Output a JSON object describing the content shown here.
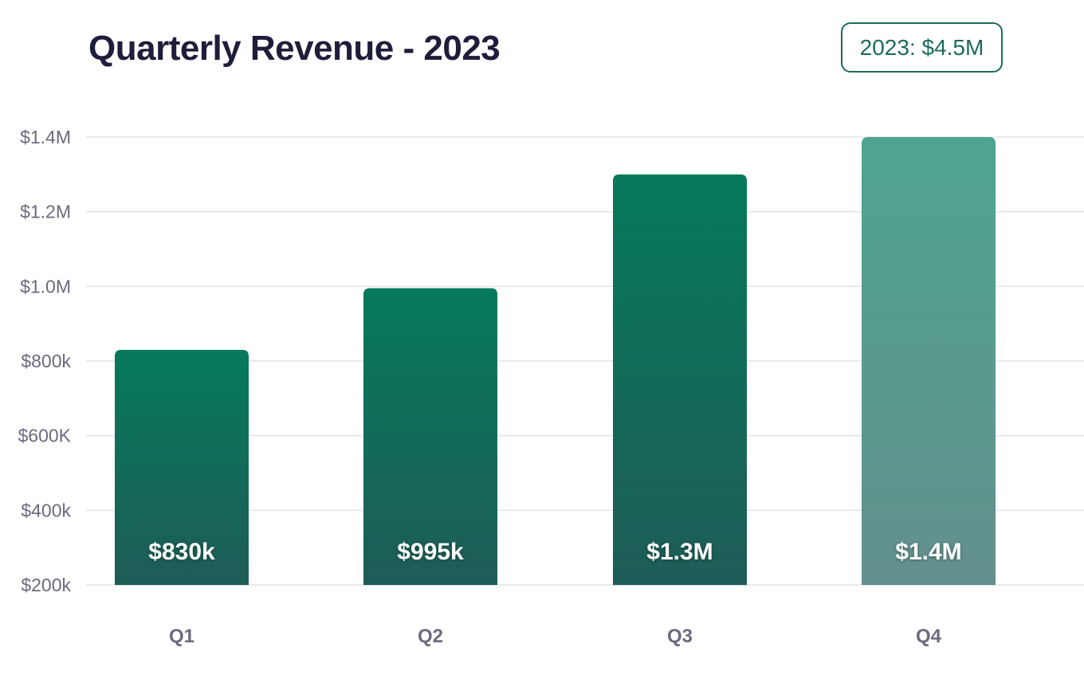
{
  "summary_badge": "2023: $4.5M",
  "chart_data": {
    "type": "bar",
    "title": "Quarterly Revenue - 2023",
    "categories": [
      "Q1",
      "Q2",
      "Q3",
      "Q4"
    ],
    "values": [
      830000,
      995000,
      1300000,
      1400000
    ],
    "value_labels": [
      "$830k",
      "$995k",
      "$1.3M",
      "$1.4M"
    ],
    "ylim": [
      200000,
      1400000
    ],
    "yticks": [
      200000,
      400000,
      600000,
      800000,
      1000000,
      1200000,
      1400000
    ],
    "ytick_labels": [
      "$200k",
      "$400k",
      "$600K",
      "$800k",
      "$1.0M",
      "$1.2M",
      "$1.4M"
    ],
    "xlabel": "",
    "ylabel": "",
    "grid": true,
    "colors": {
      "bar_top": "#067a5a",
      "bar_bottom": "#1e5c57",
      "last_bar_top": "#4ea58f",
      "last_bar_bottom": "#63908d",
      "grid": "#e3e3e8",
      "tick_text": "#6b6a7d",
      "title_text": "#1e1d3a",
      "badge_border": "#1d6b5a"
    }
  }
}
